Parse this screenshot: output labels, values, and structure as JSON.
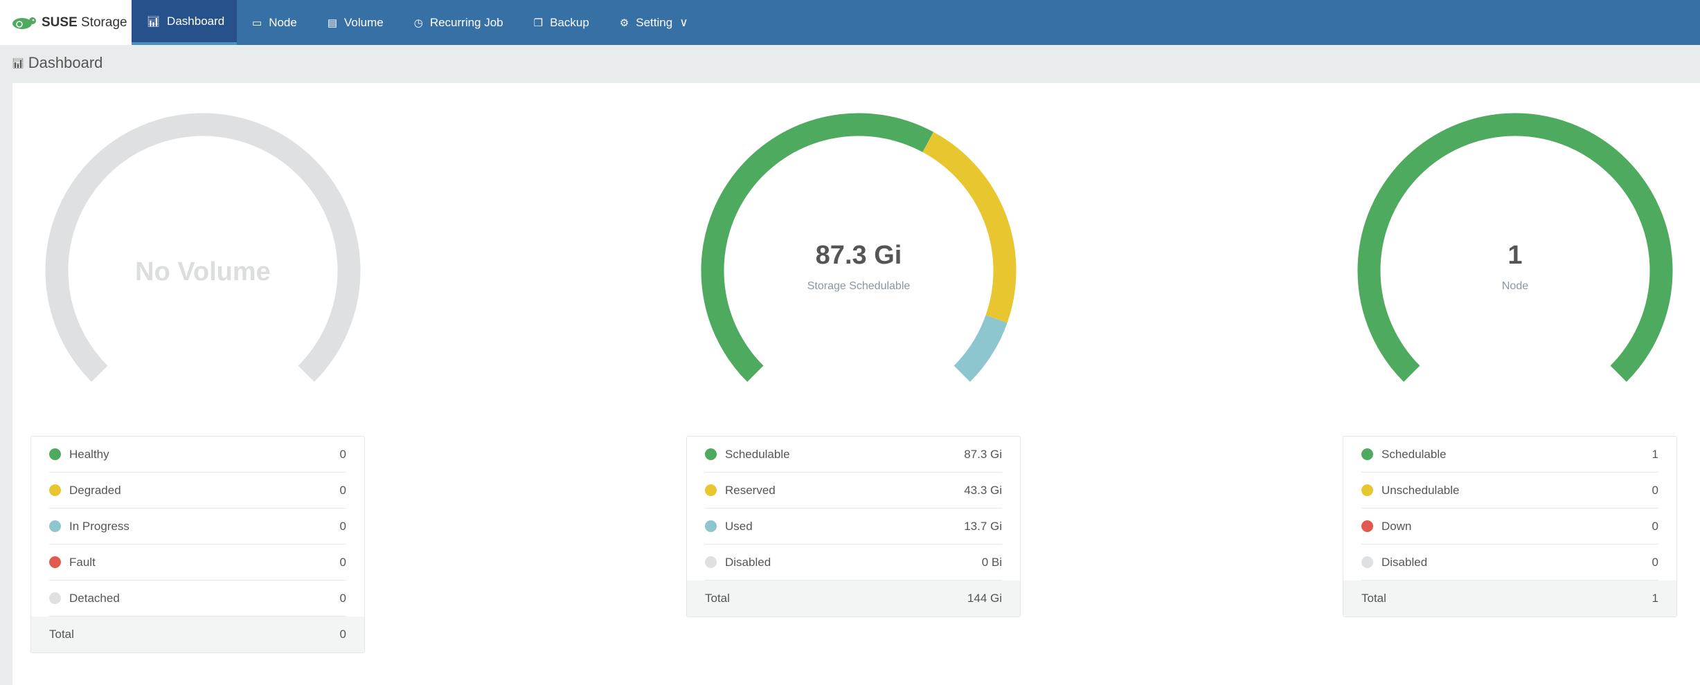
{
  "header": {
    "logo": {
      "brand": "SUSE",
      "product": "Storage"
    },
    "tabs": [
      {
        "label": "Dashboard",
        "icon": "bar-chart-icon",
        "active": true
      },
      {
        "label": "Node",
        "icon": "laptop-icon"
      },
      {
        "label": "Volume",
        "icon": "server-icon"
      },
      {
        "label": "Recurring Job",
        "icon": "clock-icon"
      },
      {
        "label": "Backup",
        "icon": "copy-icon"
      },
      {
        "label": "Setting",
        "icon": "gear-icon",
        "dropdown": true
      }
    ]
  },
  "page_title": "Dashboard",
  "colors": {
    "green": "#4eaa5e",
    "yellow": "#e8c62f",
    "blue": "#8dc6ce",
    "red": "#e05a4f",
    "gray": "#dfe0e1"
  },
  "panels": [
    {
      "gauge": {
        "value": "",
        "label": "",
        "empty_text": "No Volume",
        "segments": []
      },
      "items": [
        {
          "label": "Healthy",
          "value": "0",
          "color": "green"
        },
        {
          "label": "Degraded",
          "value": "0",
          "color": "yellow"
        },
        {
          "label": "In Progress",
          "value": "0",
          "color": "blue"
        },
        {
          "label": "Fault",
          "value": "0",
          "color": "red"
        },
        {
          "label": "Detached",
          "value": "0",
          "color": "gray"
        }
      ],
      "total": {
        "label": "Total",
        "value": "0"
      }
    },
    {
      "gauge": {
        "value": "87.3 Gi",
        "label": "Storage Schedulable",
        "empty_text": "",
        "segments": [
          {
            "amount": 87.3,
            "color": "green"
          },
          {
            "amount": 43.3,
            "color": "yellow"
          },
          {
            "amount": 13.7,
            "color": "blue"
          }
        ]
      },
      "items": [
        {
          "label": "Schedulable",
          "value": "87.3 Gi",
          "color": "green"
        },
        {
          "label": "Reserved",
          "value": "43.3 Gi",
          "color": "yellow"
        },
        {
          "label": "Used",
          "value": "13.7 Gi",
          "color": "blue"
        },
        {
          "label": "Disabled",
          "value": "0 Bi",
          "color": "gray"
        }
      ],
      "total": {
        "label": "Total",
        "value": "144 Gi"
      }
    },
    {
      "gauge": {
        "value": "1",
        "label": "Node",
        "empty_text": "",
        "segments": [
          {
            "amount": 1,
            "color": "green"
          }
        ]
      },
      "items": [
        {
          "label": "Schedulable",
          "value": "1",
          "color": "green"
        },
        {
          "label": "Unschedulable",
          "value": "0",
          "color": "yellow"
        },
        {
          "label": "Down",
          "value": "0",
          "color": "red"
        },
        {
          "label": "Disabled",
          "value": "0",
          "color": "gray"
        }
      ],
      "total": {
        "label": "Total",
        "value": "1"
      }
    }
  ]
}
